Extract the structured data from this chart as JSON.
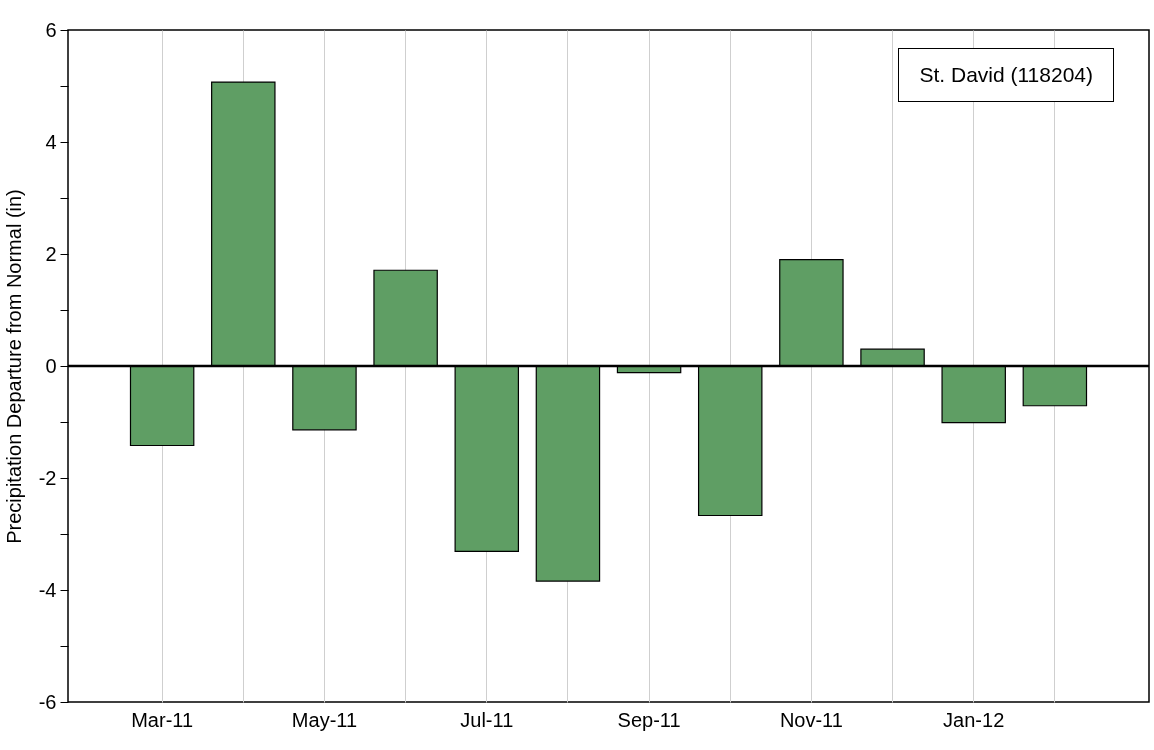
{
  "chart_data": {
    "type": "bar",
    "categories": [
      "Mar-11",
      null,
      "May-11",
      null,
      "Jul-11",
      null,
      "Sep-11",
      null,
      "Nov-11",
      null,
      "Jan-12",
      null
    ],
    "values": [
      -1.42,
      5.07,
      -1.14,
      1.71,
      -3.31,
      -3.84,
      -0.12,
      -2.67,
      1.9,
      0.3,
      -1.01,
      -0.71
    ],
    "color": "#5f9e64",
    "ylabel": "Precipitation Departure from Normal (in)",
    "ylim": [
      -6,
      6
    ],
    "yticks": [
      -6,
      {
        "value": -5,
        "label": null
      },
      -4,
      {
        "value": -3,
        "label": null
      },
      -2,
      {
        "value": -1,
        "label": null
      },
      0,
      {
        "value": 1,
        "label": null
      },
      2,
      {
        "value": 3,
        "label": null
      },
      4,
      {
        "value": 5,
        "label": null
      },
      6
    ],
    "grid": "x",
    "ref_lines": [
      {
        "axis": "y",
        "value": 0,
        "color": "#000000"
      }
    ],
    "annotations": [
      "St. David (118204)"
    ]
  }
}
